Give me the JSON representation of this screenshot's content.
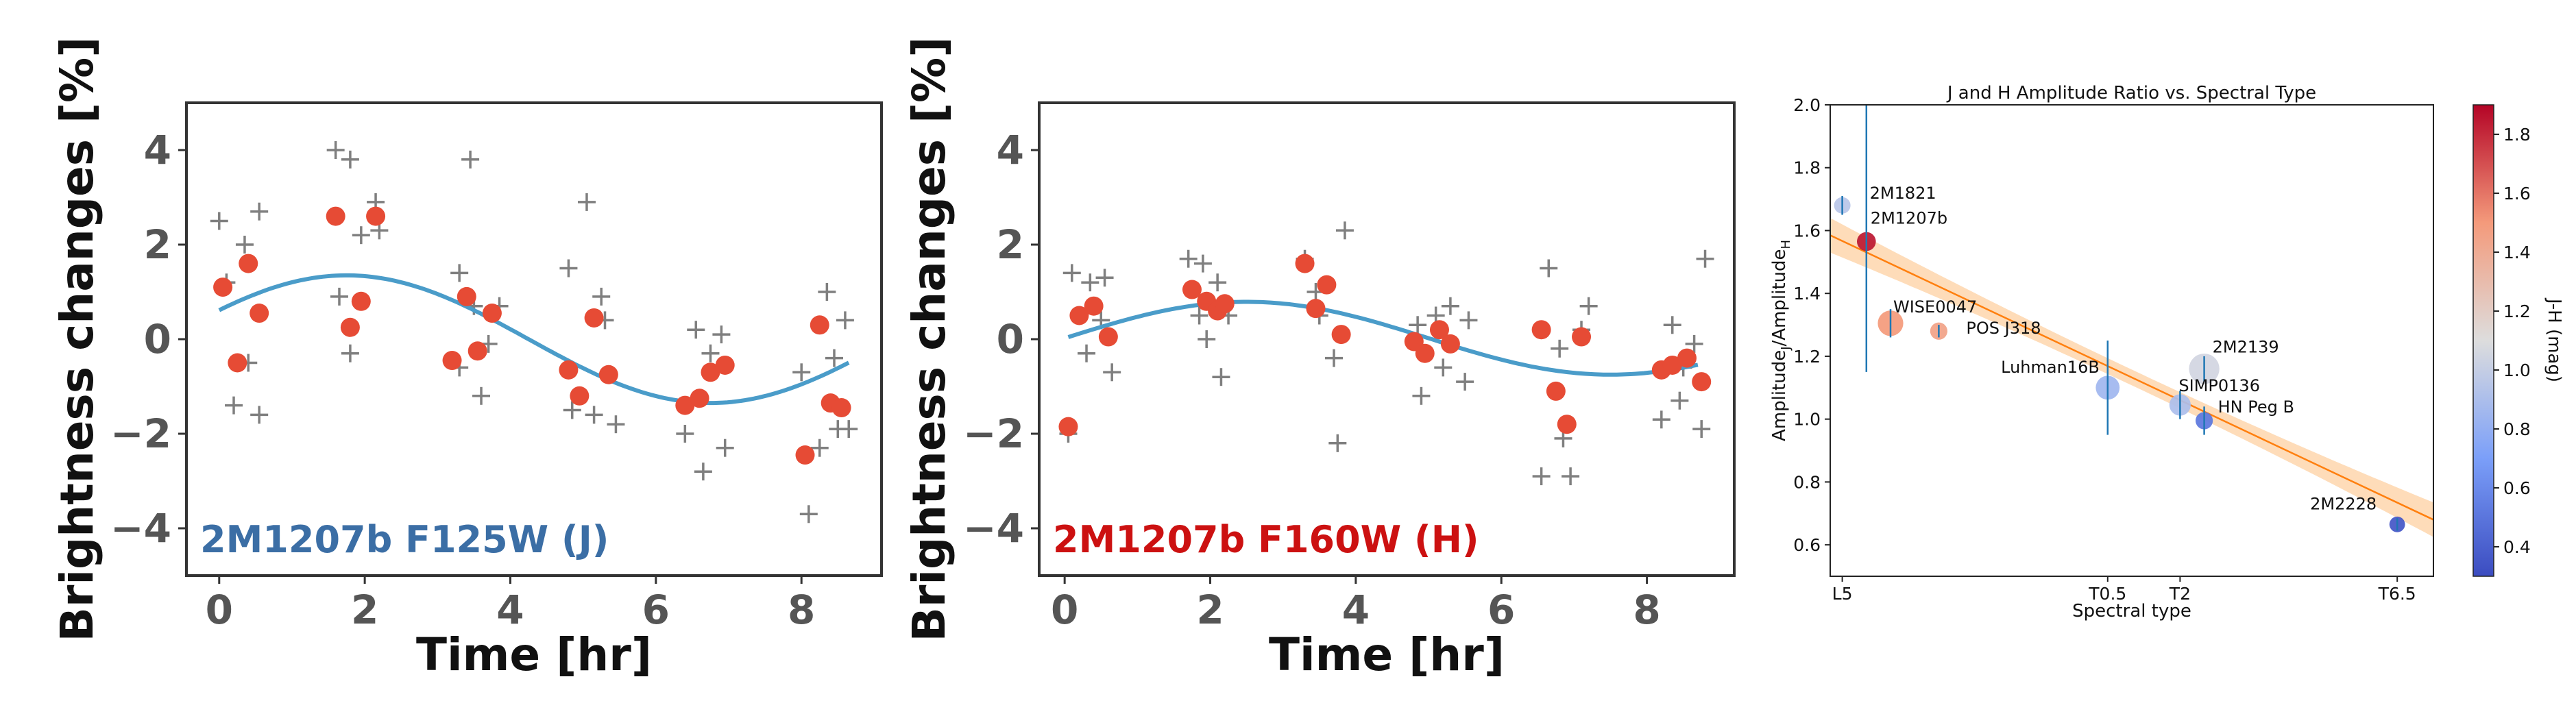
{
  "chart_data": [
    {
      "type": "scatter",
      "xlabel": "Time [hr]",
      "ylabel": "Brightness changes [%]",
      "xlim": [
        -0.45,
        9.1
      ],
      "ylim": [
        -5,
        5
      ],
      "xticks": [
        "0",
        "2",
        "4",
        "6",
        "8"
      ],
      "xtick_values": [
        0,
        2,
        4,
        6,
        8
      ],
      "yticks": [
        "−4",
        "−2",
        "0",
        "2",
        "4"
      ],
      "ytick_values": [
        -4,
        -2,
        0,
        2,
        4
      ],
      "label": "2M1207b F125W (J)",
      "label_color": "#3b6ea5",
      "series": [
        {
          "kind": "individual-points",
          "marker": "plus",
          "color": "#7f7f7f",
          "points": [
            [
              0,
              2.5
            ],
            [
              0.1,
              1.2
            ],
            [
              0.2,
              -1.4
            ],
            [
              0.35,
              2.0
            ],
            [
              0.4,
              -0.5
            ],
            [
              0.55,
              2.7
            ],
            [
              0.55,
              -1.6
            ],
            [
              1.6,
              4.0
            ],
            [
              1.65,
              0.9
            ],
            [
              1.8,
              3.8
            ],
            [
              1.8,
              -0.3
            ],
            [
              1.95,
              2.2
            ],
            [
              2.15,
              2.9
            ],
            [
              2.2,
              2.3
            ],
            [
              3.3,
              1.4
            ],
            [
              3.3,
              -0.6
            ],
            [
              3.45,
              3.8
            ],
            [
              3.5,
              0.7
            ],
            [
              3.6,
              -1.2
            ],
            [
              3.7,
              -0.1
            ],
            [
              3.85,
              0.7
            ],
            [
              4.8,
              1.5
            ],
            [
              4.85,
              -1.5
            ],
            [
              5.05,
              2.9
            ],
            [
              5.15,
              -1.6
            ],
            [
              5.25,
              0.9
            ],
            [
              5.3,
              0.4
            ],
            [
              5.45,
              -1.8
            ],
            [
              6.4,
              -2.0
            ],
            [
              6.55,
              0.2
            ],
            [
              6.65,
              -2.8
            ],
            [
              6.75,
              -0.3
            ],
            [
              6.9,
              0.1
            ],
            [
              6.95,
              -2.3
            ],
            [
              8.0,
              -0.7
            ],
            [
              8.1,
              -3.7
            ],
            [
              8.25,
              -2.3
            ],
            [
              8.35,
              1.0
            ],
            [
              8.45,
              -0.4
            ],
            [
              8.5,
              -1.9
            ],
            [
              8.6,
              0.4
            ],
            [
              8.65,
              -1.9
            ]
          ]
        },
        {
          "kind": "binned",
          "marker": "circle",
          "color": "#e64b35",
          "points": [
            [
              0.05,
              1.1
            ],
            [
              0.25,
              -0.5
            ],
            [
              0.4,
              1.6
            ],
            [
              0.55,
              0.55
            ],
            [
              1.6,
              2.6
            ],
            [
              1.8,
              0.25
            ],
            [
              1.95,
              0.8
            ],
            [
              2.15,
              2.6
            ],
            [
              3.2,
              -0.45
            ],
            [
              3.4,
              0.9
            ],
            [
              3.55,
              -0.25
            ],
            [
              3.75,
              0.55
            ],
            [
              4.8,
              -0.65
            ],
            [
              4.95,
              -1.2
            ],
            [
              5.15,
              0.45
            ],
            [
              5.35,
              -0.75
            ],
            [
              6.4,
              -1.4
            ],
            [
              6.6,
              -1.25
            ],
            [
              6.75,
              -0.7
            ],
            [
              6.95,
              -0.55
            ],
            [
              8.05,
              -2.45
            ],
            [
              8.25,
              0.3
            ],
            [
              8.4,
              -1.35
            ],
            [
              8.55,
              -1.45
            ]
          ]
        },
        {
          "kind": "sinusoid-fit",
          "color": "#4a9cc9",
          "amplitude": 1.35,
          "offset": 0.0,
          "period_hr": 10.0,
          "phase_peak_hr": 1.75,
          "x_range": [
            0,
            8.65
          ]
        }
      ]
    },
    {
      "type": "scatter",
      "xlabel": "Time [hr]",
      "ylabel": "Brightness changes [%]",
      "xlim": [
        -0.35,
        9.2
      ],
      "ylim": [
        -5,
        5
      ],
      "xticks": [
        "0",
        "2",
        "4",
        "6",
        "8"
      ],
      "xtick_values": [
        0,
        2,
        4,
        6,
        8
      ],
      "yticks": [
        "−4",
        "−2",
        "0",
        "2",
        "4"
      ],
      "ytick_values": [
        -4,
        -2,
        0,
        2,
        4
      ],
      "label": "2M1207b F160W (H)",
      "label_color": "#cc1111",
      "series": [
        {
          "kind": "individual-points",
          "marker": "plus",
          "color": "#7f7f7f",
          "points": [
            [
              0.05,
              -2.0
            ],
            [
              0.1,
              1.4
            ],
            [
              0.3,
              -0.3
            ],
            [
              0.35,
              1.2
            ],
            [
              0.5,
              0.4
            ],
            [
              0.55,
              1.3
            ],
            [
              0.65,
              -0.7
            ],
            [
              1.7,
              1.7
            ],
            [
              1.85,
              0.5
            ],
            [
              1.9,
              1.6
            ],
            [
              1.95,
              0
            ],
            [
              2.1,
              1.2
            ],
            [
              2.15,
              -0.8
            ],
            [
              2.25,
              0.5
            ],
            [
              3.3,
              1.7
            ],
            [
              3.45,
              1.0
            ],
            [
              3.5,
              0.5
            ],
            [
              3.7,
              -0.4
            ],
            [
              3.75,
              -2.2
            ],
            [
              3.85,
              2.3
            ],
            [
              4.85,
              0.3
            ],
            [
              4.9,
              -1.2
            ],
            [
              5.1,
              0.5
            ],
            [
              5.2,
              -0.6
            ],
            [
              5.3,
              0.7
            ],
            [
              5.5,
              -0.9
            ],
            [
              5.55,
              0.4
            ],
            [
              6.55,
              -2.9
            ],
            [
              6.65,
              1.5
            ],
            [
              6.8,
              -0.2
            ],
            [
              6.85,
              -2.1
            ],
            [
              6.95,
              -2.9
            ],
            [
              7.1,
              0.2
            ],
            [
              7.2,
              0.7
            ],
            [
              8.2,
              -1.7
            ],
            [
              8.35,
              0.3
            ],
            [
              8.45,
              -1.3
            ],
            [
              8.5,
              -0.6
            ],
            [
              8.65,
              -0.1
            ],
            [
              8.75,
              -1.9
            ],
            [
              8.8,
              1.7
            ]
          ]
        },
        {
          "kind": "binned",
          "marker": "circle",
          "color": "#e64b35",
          "points": [
            [
              0.05,
              -1.85
            ],
            [
              0.2,
              0.5
            ],
            [
              0.4,
              0.7
            ],
            [
              0.6,
              0.05
            ],
            [
              1.75,
              1.05
            ],
            [
              1.95,
              0.8
            ],
            [
              2.1,
              0.6
            ],
            [
              2.2,
              0.75
            ],
            [
              3.3,
              1.6
            ],
            [
              3.45,
              0.65
            ],
            [
              3.6,
              1.15
            ],
            [
              3.8,
              0.1
            ],
            [
              4.8,
              -0.05
            ],
            [
              4.95,
              -0.3
            ],
            [
              5.15,
              0.2
            ],
            [
              5.3,
              -0.1
            ],
            [
              6.55,
              0.2
            ],
            [
              6.75,
              -1.1
            ],
            [
              6.9,
              -1.8
            ],
            [
              7.1,
              0.05
            ],
            [
              8.2,
              -0.65
            ],
            [
              8.35,
              -0.55
            ],
            [
              8.55,
              -0.4
            ],
            [
              8.75,
              -0.9
            ]
          ]
        },
        {
          "kind": "sinusoid-fit",
          "color": "#4a9cc9",
          "amplitude": 0.77,
          "offset": 0.02,
          "period_hr": 10.0,
          "phase_peak_hr": 2.5,
          "x_range": [
            0.05,
            8.7
          ]
        }
      ]
    },
    {
      "type": "scatter",
      "title": "J and H Amplitude Ratio vs. Spectral Type",
      "xlabel": "Spectral type",
      "ylabel": "Amplitude",
      "ylabel_sub1": "J",
      "ylabel_mid": "/Amplitude",
      "ylabel_sub2": "H",
      "xlim": [
        0,
        25
      ],
      "ylim": [
        0.5,
        2.0
      ],
      "xticks": [
        "L5",
        "T0.5",
        "T2",
        "T6.5"
      ],
      "xtick_values": [
        0.5,
        11.5,
        14.5,
        23.5
      ],
      "yticks": [
        "0.6",
        "0.8",
        "1.0",
        "1.2",
        "1.4",
        "1.6",
        "1.8",
        "2.0"
      ],
      "ytick_values": [
        0.6,
        0.8,
        1.0,
        1.2,
        1.4,
        1.6,
        1.8,
        2.0
      ],
      "colorbar": {
        "label": "J-H (mag)",
        "min": 0.3,
        "max": 1.9,
        "ticks": [
          "0.4",
          "0.6",
          "0.8",
          "1.0",
          "1.2",
          "1.4",
          "1.6",
          "1.8"
        ],
        "tick_values": [
          0.4,
          0.6,
          0.8,
          1.0,
          1.2,
          1.4,
          1.6,
          1.8
        ],
        "colormap": "coolwarm"
      },
      "fit": {
        "color": "#ff7f0e",
        "band_color": "#fdd0a2",
        "y_at_xmin": 1.585,
        "y_at_xmax": 0.68,
        "band_halfwidth_ends": 0.055,
        "band_halfwidth_mid": 0.025
      },
      "points": [
        {
          "name": "2M1821",
          "x": 0.5,
          "y": 1.68,
          "jh": 0.95,
          "size": 1.0,
          "err_low": 1.65,
          "err_high": 1.71
        },
        {
          "name": "2M1207b",
          "x": 1.5,
          "y": 1.565,
          "jh": 1.85,
          "size": 1.15,
          "err_low": 1.15,
          "err_high": 2.0
        },
        {
          "name": "WISE0047",
          "x": 2.5,
          "y": 1.305,
          "jh": 1.5,
          "size": 1.55,
          "err_low": 1.26,
          "err_high": 1.35
        },
        {
          "name": "POS J318",
          "x": 4.5,
          "y": 1.28,
          "jh": 1.45,
          "size": 1.05,
          "err_low": 1.26,
          "err_high": 1.3
        },
        {
          "name": "Luhman16B",
          "x": 11.5,
          "y": 1.1,
          "jh": 0.85,
          "size": 1.45,
          "err_low": 0.95,
          "err_high": 1.25
        },
        {
          "name": "2M2139",
          "x": 15.5,
          "y": 1.16,
          "jh": 1.05,
          "size": 1.85,
          "err_low": 1.12,
          "err_high": 1.2
        },
        {
          "name": "SIMP0136",
          "x": 14.5,
          "y": 1.045,
          "jh": 0.9,
          "size": 1.3,
          "err_low": 1.0,
          "err_high": 1.09
        },
        {
          "name": "HN Peg B",
          "x": 15.5,
          "y": 0.995,
          "jh": 0.5,
          "size": 1.05,
          "err_low": 0.95,
          "err_high": 1.04
        },
        {
          "name": "2M2228",
          "x": 23.5,
          "y": 0.665,
          "jh": 0.35,
          "size": 0.95,
          "err_low": 0.645,
          "err_high": 0.685
        }
      ]
    }
  ]
}
